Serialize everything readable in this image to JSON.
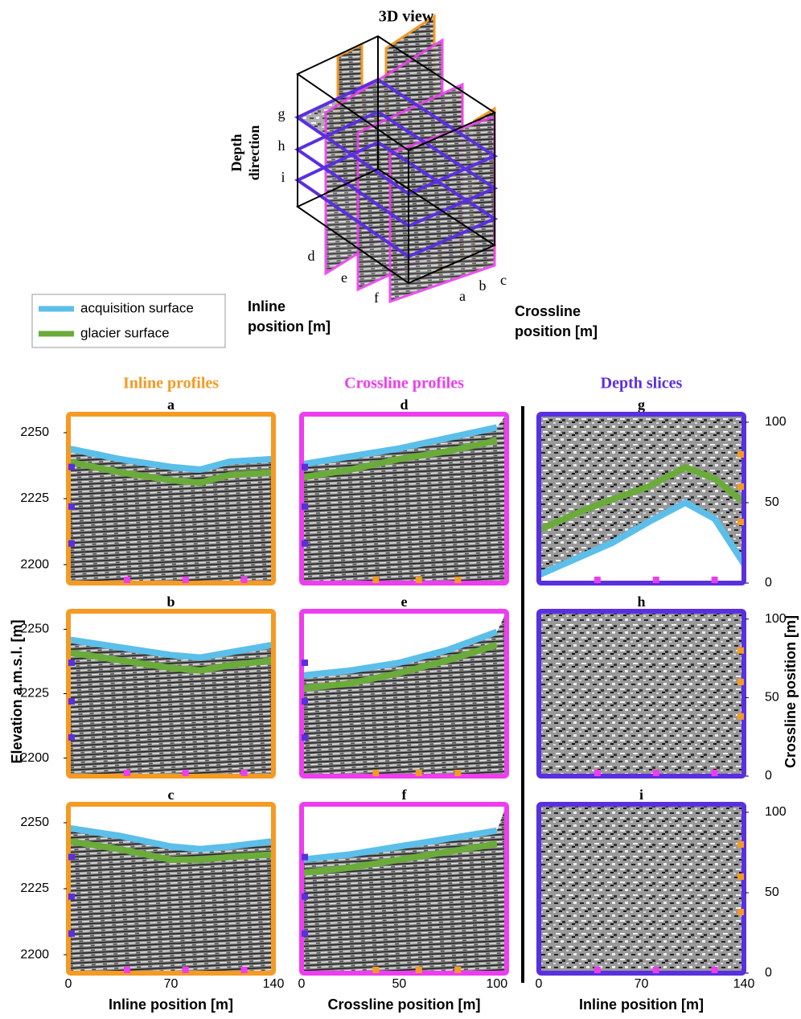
{
  "header": {
    "title": "3D view",
    "depth_label": [
      "Depth",
      "direction"
    ],
    "inline_label": [
      "Inline",
      "position [m]"
    ],
    "crossline_label": [
      "Crossline",
      "position [m]"
    ]
  },
  "legend": [
    {
      "name": "acquisition surface",
      "color": "#5bbfea"
    },
    {
      "name": "glacier surface",
      "color": "#6aab3a"
    }
  ],
  "y_label": "Elevation a.m.s.l. [m]",
  "y2_label": "Crossline position [m]",
  "slice_positions": {
    "inline": [
      40,
      80,
      120
    ],
    "crossline": [
      38,
      60,
      80
    ],
    "elevation": [
      2237,
      2222,
      2208
    ]
  },
  "columns": [
    {
      "title": "Inline profiles",
      "color": "#f59a23",
      "x_label": "Inline position [m]",
      "xlim": [
        0,
        140
      ],
      "xticks": [
        0,
        70,
        140
      ],
      "ylim": [
        2193,
        2257
      ],
      "yticks": [
        2250,
        2225,
        2200
      ]
    },
    {
      "title": "Crossline profiles",
      "color": "#ee3df0",
      "x_label": "Crossline position [m]",
      "xlim": [
        0,
        105
      ],
      "xticks": [
        0,
        50,
        100
      ],
      "ylim": [
        2193,
        2257
      ],
      "yticks": [
        2250,
        2225,
        2200
      ]
    },
    {
      "title": "Depth slices",
      "color": "#5a2fe0",
      "x_label": "Inline position [m]",
      "xlim": [
        0,
        140
      ],
      "xticks": [
        0,
        70,
        140
      ],
      "ylim": [
        0,
        105
      ],
      "yticks": [
        100,
        50,
        0
      ]
    }
  ],
  "panels": [
    {
      "label": "a",
      "column": 0,
      "row": 0,
      "x": [
        0,
        35,
        70,
        90,
        110,
        140
      ],
      "acquisition": [
        2244,
        2240,
        2237,
        2236,
        2239,
        2240
      ],
      "glacier": [
        2239,
        2235,
        2232,
        2231,
        2234,
        2235
      ]
    },
    {
      "label": "b",
      "column": 0,
      "row": 1,
      "x": [
        0,
        35,
        70,
        90,
        110,
        140
      ],
      "acquisition": [
        2246,
        2243,
        2240,
        2239,
        2241,
        2244
      ],
      "glacier": [
        2241,
        2238,
        2235,
        2234,
        2236,
        2238
      ]
    },
    {
      "label": "c",
      "column": 0,
      "row": 2,
      "x": [
        0,
        35,
        70,
        90,
        110,
        140
      ],
      "acquisition": [
        2248,
        2245,
        2241,
        2240,
        2241,
        2243
      ],
      "glacier": [
        2243,
        2240,
        2236,
        2236,
        2237,
        2238
      ]
    },
    {
      "label": "d",
      "column": 1,
      "row": 0,
      "x": [
        0,
        25,
        50,
        75,
        100
      ],
      "acquisition": [
        2238,
        2241,
        2244,
        2248,
        2252
      ],
      "glacier": [
        2233,
        2236,
        2240,
        2243,
        2247
      ]
    },
    {
      "label": "e",
      "column": 1,
      "row": 1,
      "x": [
        0,
        25,
        50,
        75,
        100
      ],
      "acquisition": [
        2232,
        2234,
        2237,
        2242,
        2249
      ],
      "glacier": [
        2227,
        2229,
        2233,
        2238,
        2244
      ]
    },
    {
      "label": "f",
      "column": 1,
      "row": 2,
      "x": [
        0,
        25,
        50,
        75,
        100
      ],
      "acquisition": [
        2236,
        2238,
        2241,
        2244,
        2247
      ],
      "glacier": [
        2231,
        2233,
        2236,
        2239,
        2242
      ]
    },
    {
      "label": "g",
      "column": 2,
      "row": 0,
      "x": [
        0,
        30,
        50,
        75,
        100,
        120,
        140
      ],
      "acquisition": [
        5,
        17,
        25,
        38,
        50,
        40,
        12
      ],
      "glacier": [
        33,
        45,
        52,
        60,
        72,
        65,
        50
      ]
    },
    {
      "label": "h",
      "column": 2,
      "row": 1
    },
    {
      "label": "i",
      "column": 2,
      "row": 2
    }
  ]
}
